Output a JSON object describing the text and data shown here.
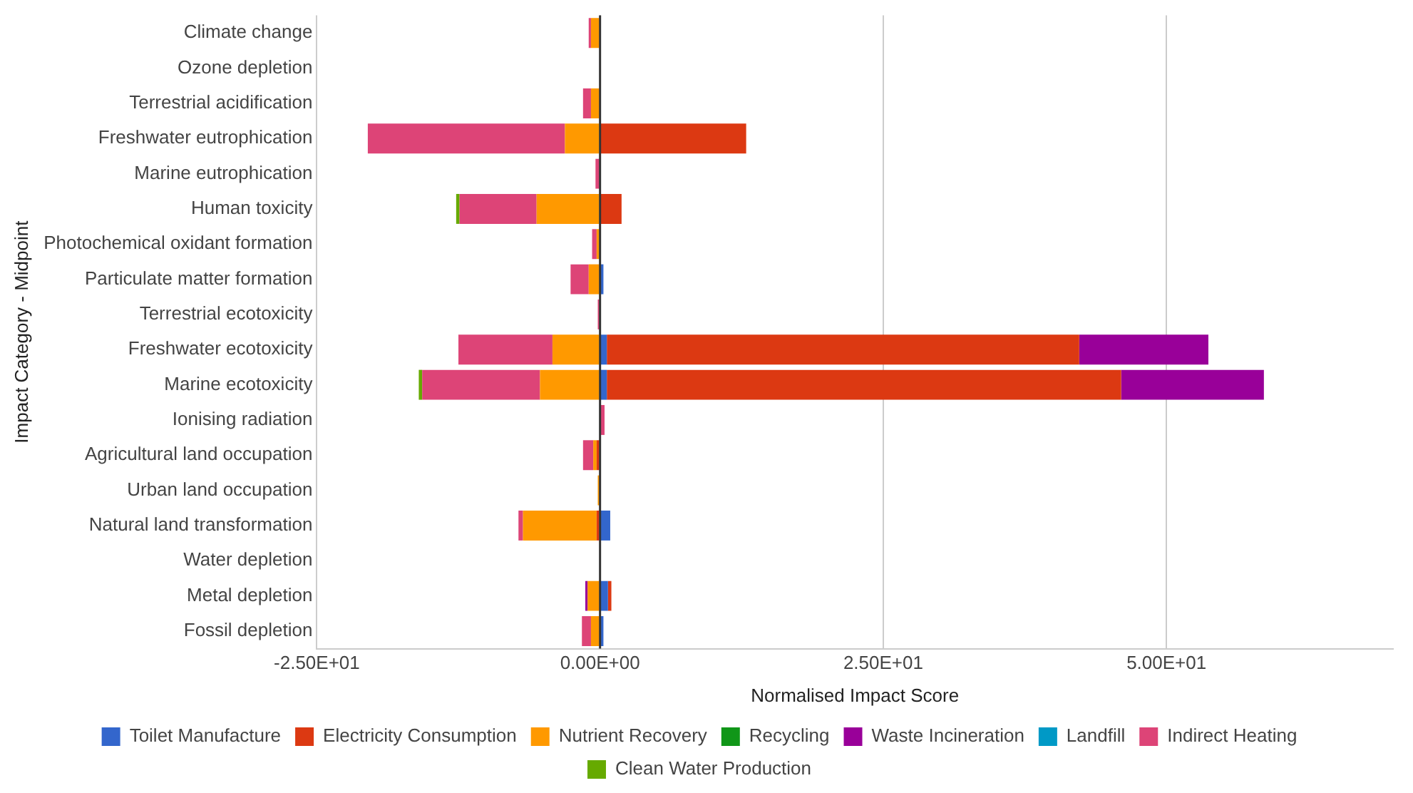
{
  "chart_data": {
    "type": "bar",
    "orientation": "horizontal",
    "stacked": true,
    "xlabel": "Normalised Impact Score",
    "ylabel": "Impact Category - Midpoint",
    "categories": [
      "Climate change",
      "Ozone depletion",
      "Terrestrial acidification",
      "Freshwater eutrophication",
      "Marine eutrophication",
      "Human toxicity",
      "Photochemical oxidant formation",
      "Particulate matter formation",
      "Terrestrial ecotoxicity",
      "Freshwater ecotoxicity",
      "Marine ecotoxicity",
      "Ionising radiation",
      "Agricultural land occupation",
      "Urban land occupation",
      "Natural land transformation",
      "Water depletion",
      "Metal depletion",
      "Fossil depletion"
    ],
    "series": [
      {
        "name": "Toilet Manufacture",
        "color": "#3366cc",
        "values": [
          null,
          null,
          null,
          null,
          null,
          null,
          null,
          0.3,
          null,
          0.6,
          0.6,
          null,
          null,
          null,
          0.9,
          null,
          0.7,
          0.3
        ]
      },
      {
        "name": "Electricity Consumption",
        "color": "#dc3912",
        "values": [
          null,
          null,
          null,
          12.9,
          null,
          1.9,
          null,
          null,
          null,
          41.7,
          45.4,
          null,
          -0.3,
          null,
          -0.3,
          null,
          0.3,
          null
        ]
      },
      {
        "name": "Nutrient Recovery",
        "color": "#ff9900",
        "values": [
          -0.8,
          null,
          -0.8,
          -3.1,
          null,
          -5.6,
          -0.3,
          -1.0,
          null,
          -4.2,
          -5.3,
          null,
          -0.3,
          -0.2,
          -6.5,
          null,
          -1.1,
          -0.8
        ]
      },
      {
        "name": "Recycling",
        "color": "#109618",
        "values": [
          null,
          null,
          null,
          null,
          null,
          null,
          null,
          null,
          null,
          null,
          null,
          null,
          null,
          null,
          null,
          null,
          null,
          null
        ]
      },
      {
        "name": "Waste Incineration",
        "color": "#990099",
        "values": [
          null,
          null,
          null,
          null,
          null,
          null,
          null,
          null,
          null,
          11.4,
          12.6,
          null,
          null,
          null,
          null,
          null,
          -0.2,
          null
        ]
      },
      {
        "name": "Landfill",
        "color": "#0099c6",
        "values": [
          null,
          null,
          null,
          null,
          null,
          null,
          null,
          null,
          null,
          null,
          null,
          null,
          null,
          null,
          null,
          null,
          null,
          null
        ]
      },
      {
        "name": "Indirect Heating",
        "color": "#dd4477",
        "values": [
          -0.2,
          null,
          -0.7,
          -17.4,
          -0.4,
          -6.8,
          -0.4,
          -1.6,
          -0.2,
          -8.3,
          -10.4,
          0.4,
          -0.9,
          null,
          -0.4,
          null,
          null,
          -0.8
        ]
      },
      {
        "name": "Clean Water Production",
        "color": "#66aa00",
        "values": [
          null,
          null,
          null,
          null,
          null,
          -0.3,
          null,
          null,
          null,
          null,
          -0.3,
          null,
          null,
          null,
          null,
          null,
          null,
          null
        ]
      }
    ],
    "xlim": [
      -25,
      70
    ],
    "xticks": [
      {
        "value": -25,
        "label": "-2.50E+01"
      },
      {
        "value": 0,
        "label": "0.00E+00"
      },
      {
        "value": 25,
        "label": "2.50E+01"
      },
      {
        "value": 50,
        "label": "5.00E+01"
      }
    ],
    "ref_lines": [
      {
        "axis": "x",
        "value": 0,
        "color": "#333333"
      }
    ],
    "grid": "x",
    "legend": "bottom"
  }
}
